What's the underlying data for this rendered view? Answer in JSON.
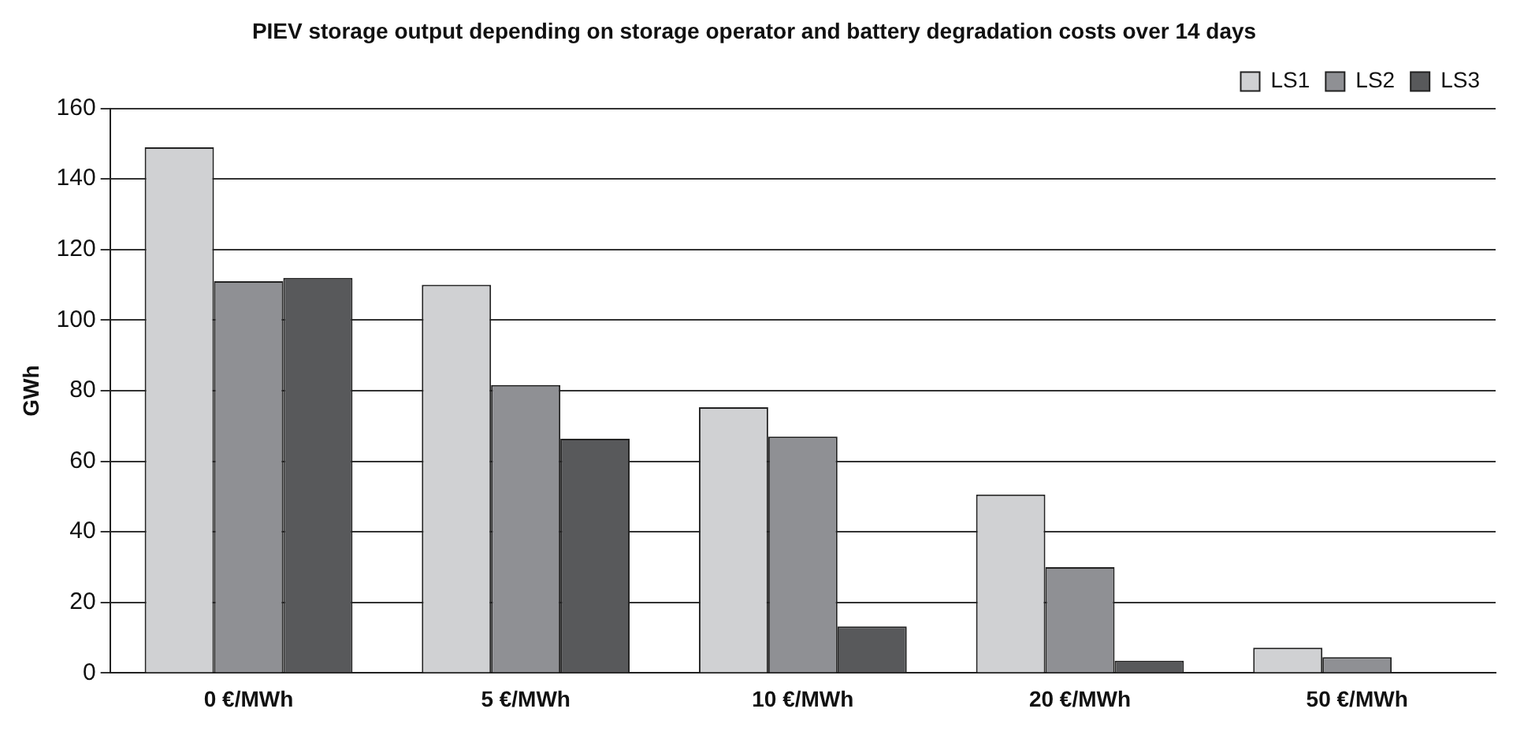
{
  "chart_data": {
    "type": "bar",
    "title": "PIEV storage output depending on storage operator and battery degradation costs over 14 days",
    "ylabel": "GWh",
    "categories": [
      "0 €/MWh",
      "5 €/MWh",
      "10 €/MWh",
      "20 €/MWh",
      "50 €/MWh"
    ],
    "series": [
      {
        "name": "LS1",
        "color": "#d0d1d3",
        "values": [
          149,
          110,
          75.3,
          50.6,
          7.2
        ]
      },
      {
        "name": "LS2",
        "color": "#8f9094",
        "values": [
          111,
          81.6,
          67,
          30,
          4.5
        ]
      },
      {
        "name": "LS3",
        "color": "#58595b",
        "values": [
          112,
          66.4,
          13.2,
          3.5,
          0
        ]
      }
    ],
    "ylim": [
      0,
      160
    ],
    "yticks": [
      0,
      20,
      40,
      60,
      80,
      100,
      120,
      140,
      160
    ],
    "grid": "y",
    "legend": "top right"
  }
}
